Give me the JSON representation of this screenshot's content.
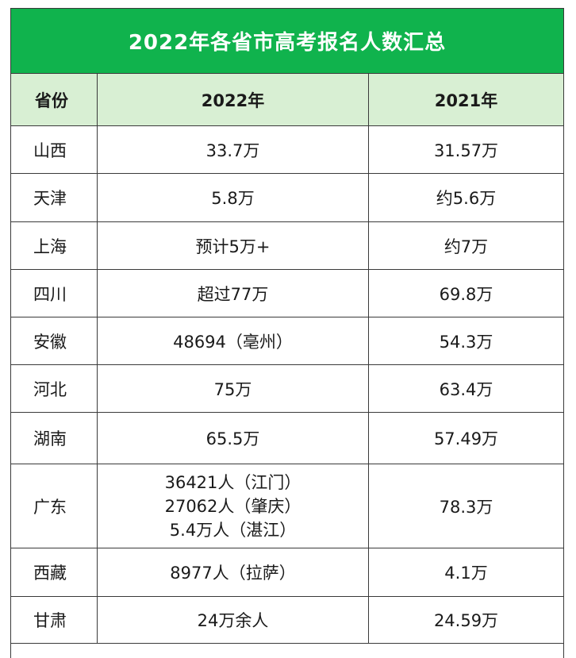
{
  "title": "2022年各省市高考报名人数汇总",
  "headers": [
    "省份",
    "2022年",
    "2021年"
  ],
  "rows": [
    {
      "province": "山西",
      "y2022": [
        "33.7万"
      ],
      "y2021": "31.57万"
    },
    {
      "province": "天津",
      "y2022": [
        "5.8万"
      ],
      "y2021": "约5.6万"
    },
    {
      "province": "上海",
      "y2022": [
        "预计5万+"
      ],
      "y2021": "约7万"
    },
    {
      "province": "四川",
      "y2022": [
        "超过77万"
      ],
      "y2021": "69.8万"
    },
    {
      "province": "安徽",
      "y2022": [
        "48694（亳州）"
      ],
      "y2021": "54.3万"
    },
    {
      "province": "河北",
      "y2022": [
        "75万"
      ],
      "y2021": "63.4万"
    },
    {
      "province": "湖南",
      "y2022": [
        "65.5万"
      ],
      "y2021": "57.49万"
    },
    {
      "province": "广东",
      "y2022": [
        "36421人（江门）",
        "27062人（肇庆）",
        "5.4万人（湛江）"
      ],
      "y2021": "78.3万"
    },
    {
      "province": "西藏",
      "y2022": [
        "8977人（拉萨）"
      ],
      "y2021": "4.1万"
    },
    {
      "province": "甘肃",
      "y2022": [
        "24万余人"
      ],
      "y2021": "24.59万"
    }
  ]
}
